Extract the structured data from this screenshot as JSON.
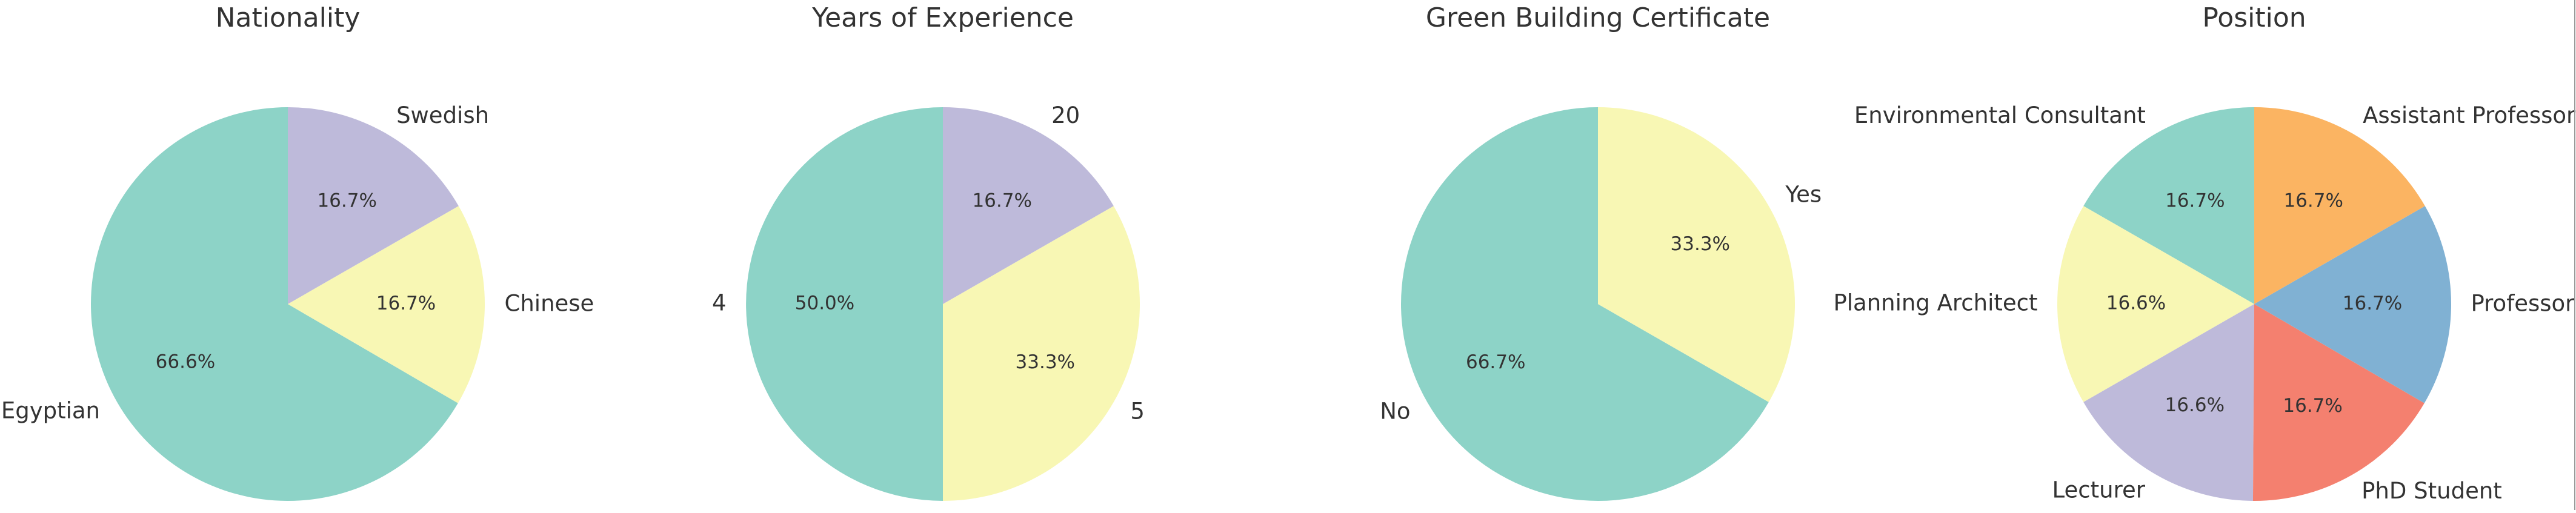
{
  "chart_data": [
    {
      "type": "pie",
      "title": "Nationality",
      "slices": [
        {
          "label": "Egyptian",
          "value": 66.6,
          "pct_label": "66.6%",
          "color": "#8dd3c7"
        },
        {
          "label": "Chinese",
          "value": 16.7,
          "pct_label": "16.7%",
          "color": "#f8f7b4"
        },
        {
          "label": "Swedish",
          "value": 16.7,
          "pct_label": "16.7%",
          "color": "#bebada"
        }
      ]
    },
    {
      "type": "pie",
      "title": "Years of Experience",
      "slices": [
        {
          "label": "4",
          "value": 50.0,
          "pct_label": "50.0%",
          "color": "#8dd3c7"
        },
        {
          "label": "5",
          "value": 33.3,
          "pct_label": "33.3%",
          "color": "#f8f7b4"
        },
        {
          "label": "20",
          "value": 16.7,
          "pct_label": "16.7%",
          "color": "#bebada"
        }
      ]
    },
    {
      "type": "pie",
      "title": "Green Building Certificate",
      "slices": [
        {
          "label": "No",
          "value": 66.7,
          "pct_label": "66.7%",
          "color": "#8dd3c7"
        },
        {
          "label": "Yes",
          "value": 33.3,
          "pct_label": "33.3%",
          "color": "#f8f7b4"
        }
      ]
    },
    {
      "type": "pie",
      "title": "Position",
      "slices": [
        {
          "label": "Environmental Consultant",
          "value": 16.7,
          "pct_label": "16.7%",
          "color": "#8dd3c7"
        },
        {
          "label": "Planning Architect",
          "value": 16.6,
          "pct_label": "16.6%",
          "color": "#f8f7b4"
        },
        {
          "label": "Lecturer",
          "value": 16.6,
          "pct_label": "16.6%",
          "color": "#bebada"
        },
        {
          "label": "PhD Student",
          "value": 16.7,
          "pct_label": "16.7%",
          "color": "#f4806f"
        },
        {
          "label": "Professor",
          "value": 16.7,
          "pct_label": "16.7%",
          "color": "#80b1d3"
        },
        {
          "label": "Assistant Professor",
          "value": 16.7,
          "pct_label": "16.7%",
          "color": "#fbb462"
        }
      ]
    }
  ]
}
